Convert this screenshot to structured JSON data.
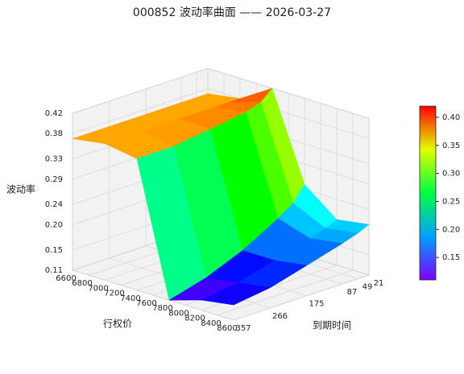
{
  "chart_data": {
    "type": "surface",
    "title": "000852 波动率曲面 —— 2026-03-27",
    "x_label": "行权价",
    "y_label": "到期时间",
    "z_label": "波动率",
    "x": [
      6600,
      7000,
      7400,
      7800,
      8200,
      8600
    ],
    "y": [
      21,
      49,
      87,
      175,
      266,
      357
    ],
    "z": [
      [
        0.37,
        0.38,
        0.42,
        0.25,
        0.2,
        0.21
      ],
      [
        0.37,
        0.38,
        0.4,
        0.22,
        0.19,
        0.2
      ],
      [
        0.37,
        0.38,
        0.39,
        0.2,
        0.18,
        0.19
      ],
      [
        0.37,
        0.38,
        0.38,
        0.16,
        0.16,
        0.17
      ],
      [
        0.37,
        0.38,
        0.37,
        0.13,
        0.14,
        0.15
      ],
      [
        0.37,
        0.38,
        0.37,
        0.11,
        0.13,
        0.14
      ]
    ],
    "xlim": [
      6600,
      8600
    ],
    "ylim": [
      357,
      21
    ],
    "zlim": [
      0.11,
      0.42
    ],
    "xticks": [
      6600,
      6800,
      7000,
      7200,
      7400,
      7600,
      7800,
      8000,
      8200,
      8400,
      8600
    ],
    "yticks": [
      21,
      49,
      87,
      175,
      266,
      357
    ],
    "zticks": [
      0.11,
      0.15,
      {
        "value": 0.2,
        "label": "0.20"
      },
      0.24,
      0.29,
      0.33,
      0.38,
      0.42
    ],
    "colormap": "rainbow",
    "clim": [
      0.11,
      0.42
    ],
    "colorbar_ticks": [
      0.15,
      {
        "value": 0.2,
        "label": "0.20"
      },
      0.25,
      {
        "value": 0.3,
        "label": "0.30"
      },
      0.35,
      {
        "value": 0.4,
        "label": "0.40"
      }
    ]
  }
}
